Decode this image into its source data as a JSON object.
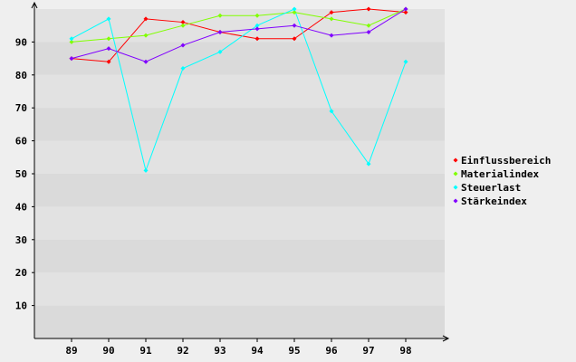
{
  "chart_data": {
    "type": "line",
    "x": [
      "89",
      "90",
      "91",
      "92",
      "93",
      "94",
      "95",
      "96",
      "97",
      "98"
    ],
    "series": [
      {
        "name": "Einflussbereich",
        "color": "#ff0000",
        "values": [
          85,
          84,
          97,
          96,
          93,
          91,
          91,
          99,
          100,
          99
        ]
      },
      {
        "name": "Materialindex",
        "color": "#80ff00",
        "values": [
          90,
          91,
          92,
          95,
          98,
          98,
          99,
          97,
          95,
          100
        ]
      },
      {
        "name": "Steuerlast",
        "color": "#00ffff",
        "values": [
          91,
          97,
          51,
          82,
          87,
          95,
          100,
          69,
          53,
          84
        ]
      },
      {
        "name": "Stärkeindex",
        "color": "#8000ff",
        "values": [
          85,
          88,
          84,
          89,
          93,
          94,
          95,
          92,
          93,
          100
        ]
      }
    ],
    "yticks": [
      10,
      20,
      30,
      40,
      50,
      60,
      70,
      80,
      90
    ],
    "ylim": [
      0,
      100
    ],
    "legend_position": "right",
    "grid": "horizontal bands",
    "background": "#efefef",
    "band_colors": [
      "#e2e2e2",
      "#dadada"
    ]
  }
}
